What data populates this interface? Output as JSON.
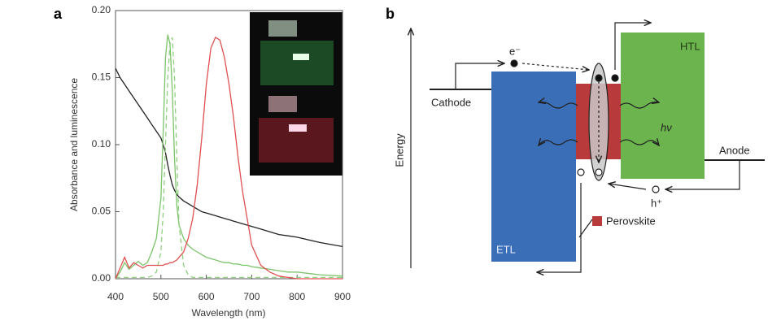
{
  "panel_labels": [
    "a",
    "b"
  ],
  "chart_data": {
    "type": "line",
    "xlabel": "Wavelength (nm)",
    "ylabel": "Absorbance and luminescence",
    "x": [
      400,
      410,
      420,
      430,
      440,
      450,
      460,
      470,
      480,
      490,
      500,
      505,
      510,
      515,
      520,
      525,
      530,
      535,
      540,
      550,
      560,
      570,
      580,
      590,
      600,
      610,
      620,
      630,
      640,
      650,
      660,
      670,
      680,
      690,
      700,
      720,
      740,
      760,
      780,
      800,
      850,
      900
    ],
    "series": [
      {
        "color": "#222222",
        "dash": false,
        "values": [
          0.157,
          0.15,
          0.145,
          0.14,
          0.135,
          0.13,
          0.125,
          0.12,
          0.115,
          0.11,
          0.105,
          0.1,
          0.094,
          0.085,
          0.077,
          0.07,
          0.066,
          0.063,
          0.061,
          0.058,
          0.056,
          0.054,
          0.052,
          0.05,
          0.049,
          0.048,
          0.047,
          0.046,
          0.045,
          0.044,
          0.043,
          0.042,
          0.041,
          0.04,
          0.039,
          0.037,
          0.035,
          0.033,
          0.032,
          0.031,
          0.027,
          0.024
        ]
      },
      {
        "color": "#7cc36a",
        "dash": false,
        "values": [
          0,
          0.005,
          0.012,
          0.007,
          0.01,
          0.013,
          0.01,
          0.012,
          0.02,
          0.03,
          0.06,
          0.11,
          0.165,
          0.182,
          0.175,
          0.14,
          0.09,
          0.055,
          0.04,
          0.03,
          0.025,
          0.022,
          0.02,
          0.018,
          0.016,
          0.015,
          0.014,
          0.013,
          0.012,
          0.012,
          0.011,
          0.011,
          0.01,
          0.01,
          0.009,
          0.008,
          0.007,
          0.006,
          0.005,
          0.005,
          0.003,
          0.002
        ]
      },
      {
        "color": "#8fd07f",
        "dash": true,
        "values": [
          0.001,
          0.001,
          0.001,
          0.001,
          0.001,
          0.001,
          0.001,
          0.001,
          0.002,
          0.005,
          0.02,
          0.05,
          0.1,
          0.15,
          0.175,
          0.18,
          0.15,
          0.09,
          0.04,
          0.01,
          0.003,
          0.001,
          0.001,
          0.001,
          0.001,
          0.001,
          0.001,
          0.001,
          0.001,
          0.001,
          0.001,
          0.001,
          0.001,
          0.001,
          0.001,
          0.001,
          0.001,
          0.001,
          0.001,
          0.001,
          0.001,
          0.001
        ]
      },
      {
        "color": "#e05050",
        "dash": false,
        "values": [
          0,
          0.008,
          0.016,
          0.008,
          0.012,
          0.01,
          0.008,
          0.01,
          0.01,
          0.01,
          0.01,
          0.01,
          0.011,
          0.011,
          0.012,
          0.012,
          0.013,
          0.014,
          0.016,
          0.02,
          0.03,
          0.045,
          0.07,
          0.105,
          0.145,
          0.172,
          0.18,
          0.178,
          0.165,
          0.145,
          0.12,
          0.09,
          0.065,
          0.045,
          0.025,
          0.01,
          0.005,
          0.002,
          0.001,
          0,
          0,
          0
        ]
      }
    ],
    "xlim": [
      400,
      900
    ],
    "xticks": [
      400,
      500,
      600,
      700,
      800,
      900
    ],
    "ylim": [
      0,
      0.2
    ],
    "yticks": [
      {
        "value": 0,
        "label": "0.00"
      },
      0.05,
      {
        "value": 0.1,
        "label": "0.10"
      },
      0.15,
      {
        "value": 0.2,
        "label": "0.20"
      }
    ]
  },
  "diagram": {
    "axis_label": "Energy",
    "electrodes": [
      "Cathode",
      "Anode"
    ],
    "layers": [
      "ETL",
      "HTL"
    ],
    "legend": "Perovskite",
    "carriers": [
      "e⁻",
      "h⁺"
    ],
    "photon": "hν"
  }
}
